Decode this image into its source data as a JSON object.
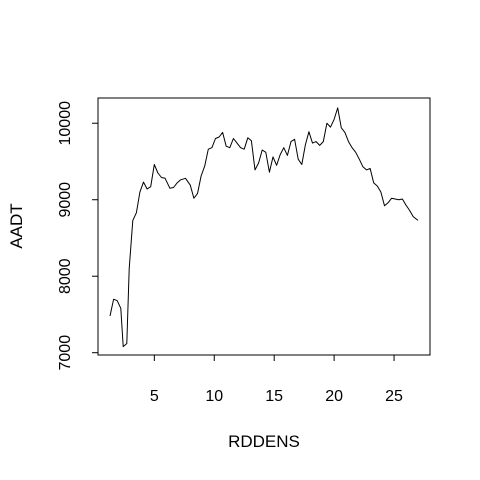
{
  "chart_data": {
    "type": "line",
    "title": "",
    "xlabel": "RDDENS",
    "ylabel": "AADT",
    "xlim": [
      0.3,
      28
    ],
    "ylim": [
      6970,
      10330
    ],
    "xticks": [
      5,
      10,
      15,
      20,
      25
    ],
    "yticks": [
      7000,
      8000,
      9000,
      10000
    ],
    "ytick_labels": [
      "7000",
      "8000",
      "9000",
      "10000"
    ],
    "grid": false,
    "legend": "none",
    "series": [
      {
        "color": "#000000",
        "x": [
          1.3,
          1.6,
          1.9,
          2.2,
          2.4,
          2.7,
          2.9,
          3.2,
          3.5,
          3.8,
          4.1,
          4.4,
          4.7,
          5.0,
          5.3,
          5.6,
          5.9,
          6.3,
          6.6,
          6.9,
          7.2,
          7.6,
          8.0,
          8.3,
          8.6,
          8.9,
          9.2,
          9.5,
          9.8,
          10.1,
          10.4,
          10.7,
          11.0,
          11.3,
          11.6,
          11.9,
          12.2,
          12.5,
          12.8,
          13.1,
          13.4,
          13.7,
          14.0,
          14.3,
          14.6,
          14.9,
          15.2,
          15.5,
          15.8,
          16.1,
          16.4,
          16.7,
          17.0,
          17.3,
          17.6,
          17.9,
          18.2,
          18.5,
          18.8,
          19.1,
          19.4,
          19.7,
          20.0,
          20.3,
          20.6,
          20.9,
          21.2,
          21.5,
          21.8,
          22.1,
          22.4,
          22.7,
          23.0,
          23.3,
          23.6,
          23.9,
          24.2,
          24.5,
          24.8,
          25.1,
          25.4,
          25.7,
          26.0,
          26.3,
          26.6,
          27.0
        ],
        "y": [
          7480,
          7700,
          7680,
          7580,
          7080,
          7120,
          8100,
          8730,
          8830,
          9100,
          9230,
          9140,
          9170,
          9460,
          9350,
          9290,
          9280,
          9150,
          9160,
          9220,
          9260,
          9280,
          9190,
          9020,
          9080,
          9310,
          9440,
          9660,
          9680,
          9800,
          9820,
          9880,
          9700,
          9680,
          9800,
          9740,
          9680,
          9660,
          9810,
          9770,
          9390,
          9480,
          9650,
          9620,
          9360,
          9560,
          9450,
          9590,
          9680,
          9580,
          9760,
          9790,
          9530,
          9460,
          9720,
          9890,
          9740,
          9760,
          9710,
          9760,
          10000,
          9950,
          10050,
          10200,
          9940,
          9880,
          9760,
          9680,
          9620,
          9530,
          9430,
          9390,
          9410,
          9220,
          9180,
          9100,
          8920,
          8960,
          9020,
          9010,
          9000,
          9010,
          8930,
          8860,
          8780,
          8730
        ]
      }
    ]
  }
}
